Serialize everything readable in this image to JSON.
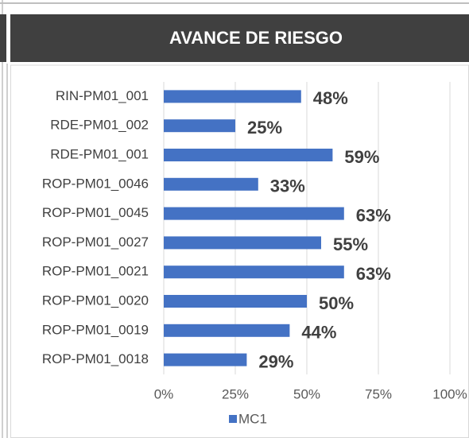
{
  "chart_data": {
    "type": "bar",
    "orientation": "horizontal",
    "title": "AVANCE DE RIESGO",
    "categories": [
      "RIN-PM01_001",
      "RDE-PM01_002",
      "RDE-PM01_001",
      "ROP-PM01_0046",
      "ROP-PM01_0045",
      "ROP-PM01_0027",
      "ROP-PM01_0021",
      "ROP-PM01_0020",
      "ROP-PM01_0019",
      "ROP-PM01_0018"
    ],
    "series": [
      {
        "name": "MC1",
        "color": "#4472c4",
        "values": [
          48,
          25,
          59,
          33,
          63,
          55,
          63,
          50,
          44,
          29
        ],
        "value_labels": [
          "48%",
          "25%",
          "59%",
          "33%",
          "63%",
          "55%",
          "63%",
          "50%",
          "44%",
          "29%"
        ]
      }
    ],
    "xlim": [
      0,
      100
    ],
    "xticks": [
      {
        "value": 0,
        "label": "0%"
      },
      {
        "value": 25,
        "label": "25%"
      },
      {
        "value": 50,
        "label": "50%"
      },
      {
        "value": 75,
        "label": "75%"
      },
      {
        "value": 100,
        "label": "100%"
      }
    ],
    "grid": true,
    "legend": "bottom"
  }
}
